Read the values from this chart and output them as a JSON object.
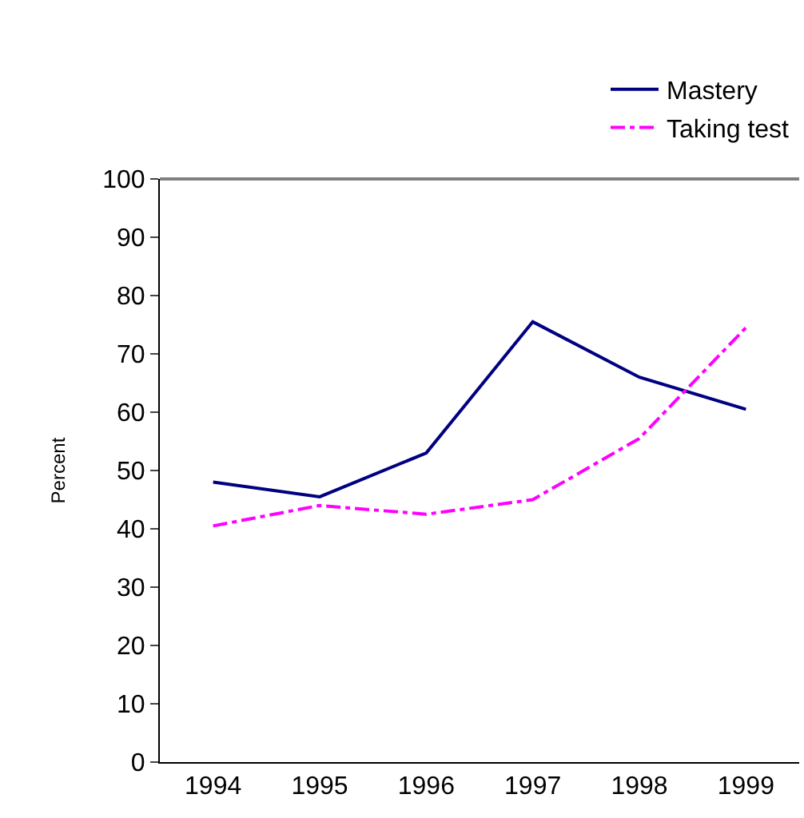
{
  "chart_data": {
    "type": "line",
    "ylabel": "Percent",
    "categories": [
      "1994",
      "1995",
      "1996",
      "1997",
      "1998",
      "1999"
    ],
    "series": [
      {
        "name": "Mastery",
        "color": "#000080",
        "values": [
          48,
          45.5,
          53,
          75.5,
          66,
          60.5
        ],
        "line_style": "solid"
      },
      {
        "name": "Taking test",
        "color": "#ff00ff",
        "values": [
          40.5,
          44,
          42.5,
          45,
          55.5,
          74.5
        ],
        "line_style": "dashdot"
      }
    ],
    "ylim": [
      0,
      100
    ],
    "yticks": [
      0,
      10,
      20,
      30,
      40,
      50,
      60,
      70,
      80,
      90,
      100
    ],
    "grid": false,
    "legend": "top right",
    "marker": "none"
  }
}
